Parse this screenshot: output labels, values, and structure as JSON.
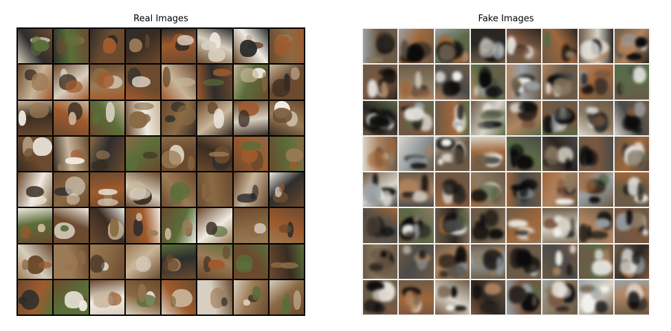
{
  "panels": [
    {
      "id": "real",
      "title": "Real Images",
      "rows": 8,
      "cols": 8,
      "frame_color": "#000000",
      "palette": [
        "#6b4a2e",
        "#8a6a45",
        "#3a2c22",
        "#c9b59a",
        "#a05a2c",
        "#2d2d2d",
        "#d8cfc0",
        "#5a6e3a",
        "#9b7b55",
        "#f0ebe2"
      ]
    },
    {
      "id": "fake",
      "title": "Fake Images",
      "rows": 8,
      "cols": 8,
      "frame_color": "#f4f4f4",
      "palette": [
        "#6b5a46",
        "#8b7a62",
        "#a0673a",
        "#4a4a48",
        "#d9d4c9",
        "#5b6a48",
        "#b08460",
        "#2b2622",
        "#9aa1a6",
        "#7a5640"
      ]
    }
  ]
}
